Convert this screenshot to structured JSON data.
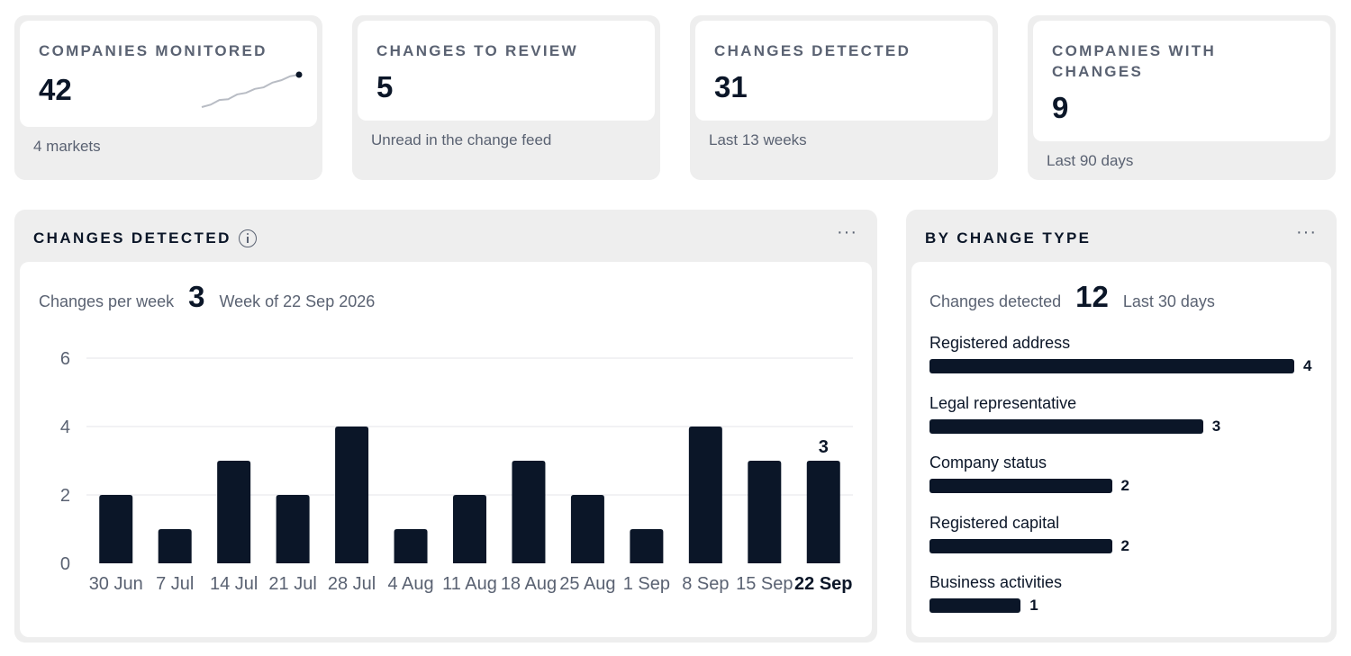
{
  "kpis": [
    {
      "label": "COMPANIES MONITORED",
      "value": "42",
      "foot": "4 markets",
      "spark": [
        1,
        1.3,
        1.9,
        2.0,
        2.6,
        2.8,
        3.3,
        3.5,
        4.1,
        4.4,
        4.9,
        5.1
      ]
    },
    {
      "label": "CHANGES TO REVIEW",
      "value": "5",
      "foot": "Unread in the change feed"
    },
    {
      "label": "CHANGES DETECTED",
      "value": "31",
      "foot": "Last 13 weeks"
    },
    {
      "label": "COMPANIES WITH CHANGES",
      "value": "9",
      "foot": "Last 90 days"
    }
  ],
  "weekly": {
    "title": "CHANGES DETECTED",
    "more": "···",
    "sub_label": "Changes per week",
    "sub_value": "3",
    "sub_note": "Week of 22 Sep 2026"
  },
  "by_type": {
    "title": "BY CHANGE TYPE",
    "more": "···",
    "sub_label": "Changes detected",
    "sub_value": "12",
    "sub_note": "Last 30 days",
    "max": 4,
    "items": [
      {
        "label": "Registered address",
        "value": 4
      },
      {
        "label": "Legal representative",
        "value": 3
      },
      {
        "label": "Company status",
        "value": 2
      },
      {
        "label": "Registered capital",
        "value": 2
      },
      {
        "label": "Business activities",
        "value": 1
      }
    ]
  },
  "chart_data": {
    "type": "bar",
    "categories": [
      "30 Jun",
      "7 Jul",
      "14 Jul",
      "21 Jul",
      "28 Jul",
      "4 Aug",
      "11 Aug",
      "18 Aug",
      "25 Aug",
      "1 Sep",
      "8 Sep",
      "15 Sep",
      "22 Sep"
    ],
    "values": [
      2,
      1,
      3,
      2,
      4,
      1,
      2,
      3,
      2,
      1,
      4,
      3,
      3
    ],
    "ylim": [
      0,
      6
    ],
    "yticks": [
      0,
      2,
      4,
      6
    ],
    "grid": true,
    "highlight_index": 12,
    "highlight_label": "3",
    "bar_color": "#0b1628"
  }
}
